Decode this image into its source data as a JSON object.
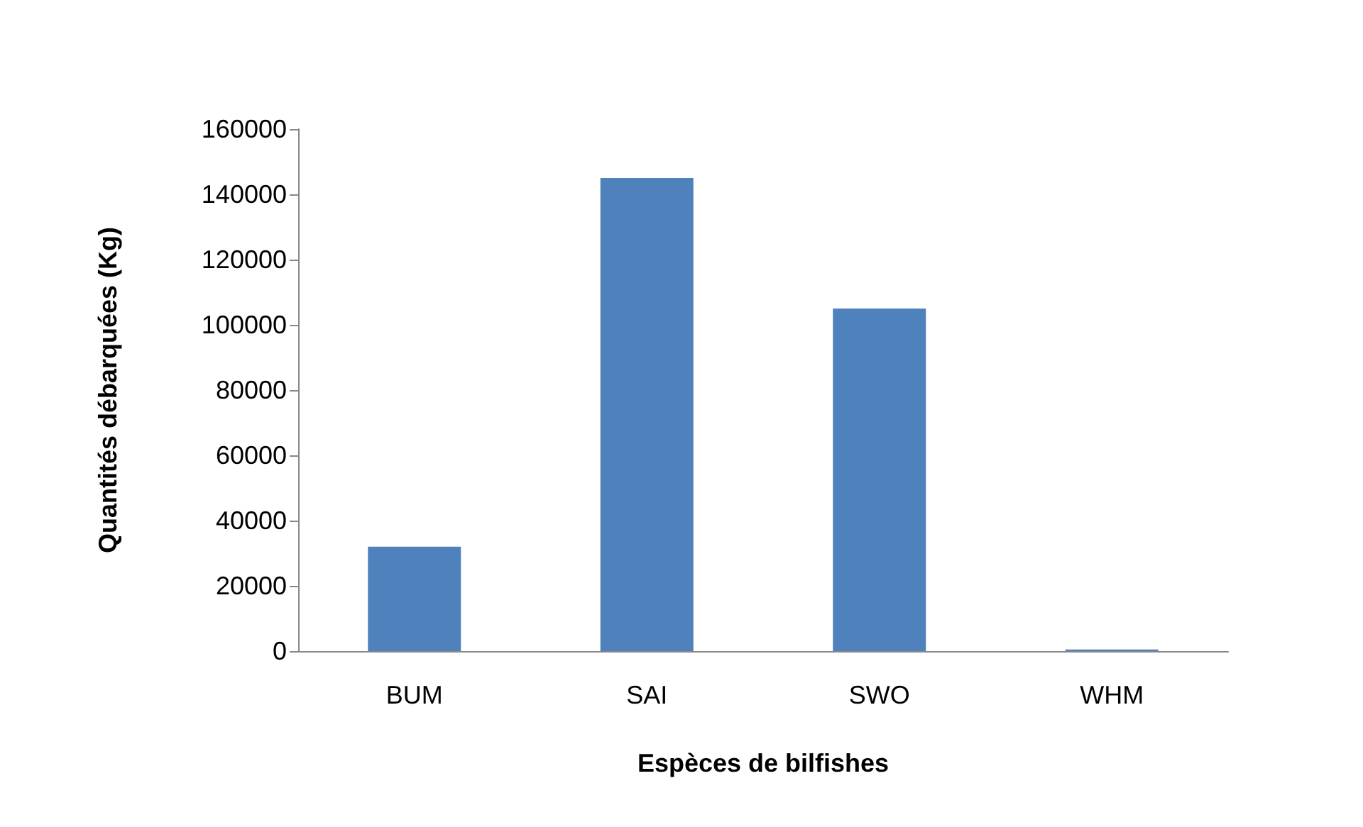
{
  "chart_data": {
    "type": "bar",
    "xlabel": "Espèces de bilfishes",
    "ylabel": "Quantités débarquées (Kg)",
    "categories": [
      "BUM",
      "SAI",
      "SWO",
      "WHM"
    ],
    "values": [
      32000,
      145000,
      105000,
      500
    ],
    "color": "#4f81bd",
    "ylim": [
      0,
      160000
    ],
    "yticks": [
      0,
      20000,
      40000,
      60000,
      80000,
      100000,
      120000,
      140000,
      160000
    ],
    "grid": false
  }
}
